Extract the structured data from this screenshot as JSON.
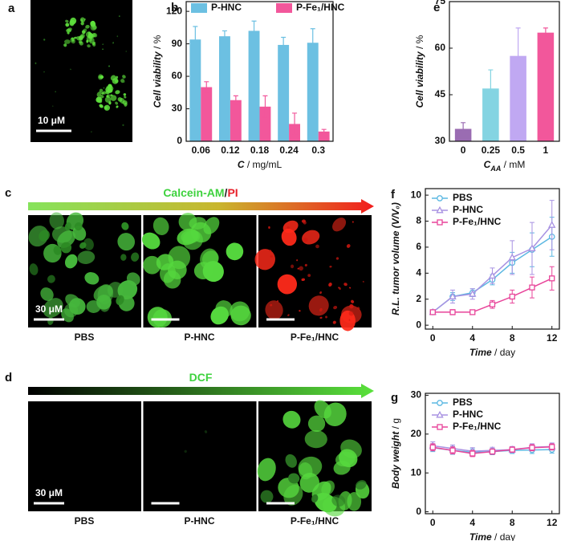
{
  "chart_data": [
    {
      "panel": "b",
      "type": "bar",
      "categories": [
        "0.06",
        "0.12",
        "0.18",
        "0.24",
        "0.3"
      ],
      "series": [
        {
          "name": "P-HNC",
          "color": "#6cc0e2",
          "values": [
            94,
            97,
            102,
            89,
            91
          ],
          "errors": [
            12,
            5,
            9,
            7,
            13
          ]
        },
        {
          "name": "P-Fe₁/HNC",
          "color": "#f2579b",
          "values": [
            50,
            38,
            32,
            16,
            9
          ],
          "errors": [
            5,
            4,
            10,
            10,
            2
          ]
        }
      ],
      "ylim": [
        0,
        129
      ],
      "yticks": [
        0,
        30,
        60,
        90,
        120
      ],
      "xlabel": [
        {
          "text": "C",
          "style": "bold-italic"
        },
        {
          "text": " / mg/mL",
          "style": "normal"
        }
      ],
      "ylabel": [
        {
          "text": "Cell viability",
          "style": "bold-italic"
        },
        {
          "text": " / %",
          "style": "normal"
        }
      ],
      "legend": "top"
    },
    {
      "panel": "e",
      "type": "bar",
      "categories": [
        "0",
        "0.25",
        "0.5",
        "1"
      ],
      "series": [
        {
          "colors": [
            "#9a6cb2",
            "#84d4e2",
            "#c0a8f2",
            "#f2579b"
          ],
          "values": [
            34,
            47,
            57.5,
            65
          ],
          "errors": [
            2,
            6,
            9,
            1.5
          ]
        }
      ],
      "ylim": [
        30,
        75
      ],
      "yticks": [
        30,
        45,
        60,
        75
      ],
      "xlabel": [
        {
          "text": "C",
          "style": "bold-italic"
        },
        {
          "text": "AA",
          "style": "sub"
        },
        {
          "text": " / mM",
          "style": "normal"
        }
      ],
      "ylabel": [
        {
          "text": "Cell viability",
          "style": "bold-italic"
        },
        {
          "text": " / %",
          "style": "normal"
        }
      ]
    },
    {
      "panel": "f",
      "type": "line",
      "x": [
        0,
        2,
        4,
        6,
        8,
        10,
        12
      ],
      "series": [
        {
          "name": "PBS",
          "color": "#5cb8e2",
          "marker": "circle",
          "values": [
            1,
            2.2,
            2.5,
            3.5,
            4.8,
            5.8,
            6.8
          ],
          "errors": [
            0.05,
            0.3,
            0.3,
            0.4,
            0.8,
            1.3,
            1.5
          ]
        },
        {
          "name": "P-HNC",
          "color": "#a892e2",
          "marker": "triangle",
          "values": [
            1,
            2.2,
            2.4,
            3.8,
            5.2,
            5.9,
            7.7
          ],
          "errors": [
            0.05,
            0.5,
            0.4,
            0.6,
            1.3,
            2.0,
            1.9
          ]
        },
        {
          "name": "P-Fe₁/HNC",
          "color": "#e8449a",
          "marker": "square",
          "values": [
            1,
            1,
            1,
            1.6,
            2.2,
            2.9,
            3.6
          ],
          "errors": [
            0.05,
            0.2,
            0.15,
            0.3,
            0.5,
            0.8,
            0.9
          ]
        }
      ],
      "xlim": [
        -0.75,
        12.75
      ],
      "xticks": [
        0,
        4,
        8,
        12
      ],
      "ylim": [
        -0.3,
        10.5
      ],
      "yticks": [
        0,
        2,
        4,
        6,
        8,
        10
      ],
      "xlabel": [
        {
          "text": "Time",
          "style": "bold-italic"
        },
        {
          "text": " / day",
          "style": "normal"
        }
      ],
      "ylabel": [
        {
          "text": "R.L. tumor volume (V/V₀)",
          "style": "bold-italic"
        }
      ],
      "legend": "upper left"
    },
    {
      "panel": "g",
      "type": "line",
      "x": [
        0,
        2,
        4,
        6,
        8,
        10,
        12
      ],
      "series": [
        {
          "name": "PBS",
          "color": "#5cb8e2",
          "marker": "circle",
          "values": [
            16.5,
            15.8,
            15.3,
            15.5,
            15.8,
            15.9,
            16.0
          ],
          "errors": [
            1.0,
            1.0,
            0.9,
            0.8,
            0.8,
            0.9,
            0.9
          ]
        },
        {
          "name": "P-HNC",
          "color": "#a892e2",
          "marker": "triangle",
          "values": [
            17.0,
            16.3,
            15.6,
            15.8,
            16.0,
            16.6,
            16.8
          ],
          "errors": [
            1.0,
            0.9,
            0.9,
            0.8,
            0.8,
            0.9,
            0.9
          ]
        },
        {
          "name": "P-Fe₁/HNC",
          "color": "#e8449a",
          "marker": "square",
          "values": [
            16.6,
            15.8,
            15.0,
            15.5,
            16.0,
            16.5,
            16.7
          ],
          "errors": [
            0.9,
            0.9,
            0.8,
            0.7,
            0.7,
            0.8,
            0.8
          ]
        }
      ],
      "xlim": [
        -0.75,
        12.75
      ],
      "xticks": [
        0,
        4,
        8,
        12
      ],
      "ylim": [
        -0.5,
        30.5
      ],
      "yticks": [
        0,
        10,
        20,
        30
      ],
      "xlabel": [
        {
          "text": "Time",
          "style": "bold-italic"
        },
        {
          "text": " / day",
          "style": "normal"
        }
      ],
      "ylabel": [
        {
          "text": "Body weight",
          "style": "bold-italic"
        },
        {
          "text": " / g",
          "style": "normal"
        }
      ],
      "legend": "upper left"
    }
  ],
  "images": {
    "a": {
      "panel": "a",
      "scale_bar": "10 μM"
    },
    "c": {
      "panel": "c",
      "title": [
        {
          "text": "Calcein-AM",
          "color": "#3ed23e"
        },
        {
          "text": "/",
          "color": "#222222"
        },
        {
          "text": "PI",
          "color": "#e8202a"
        }
      ],
      "scale_bar": "30 μM",
      "captions": [
        "PBS",
        "P-HNC",
        "P-Fe₁/HNC"
      ]
    },
    "d": {
      "panel": "d",
      "title": [
        {
          "text": "DCF",
          "color": "#3ed23e"
        }
      ],
      "scale_bar": "30 μM",
      "captions": [
        "PBS",
        "P-HNC",
        "P-Fe₁/HNC"
      ]
    }
  }
}
